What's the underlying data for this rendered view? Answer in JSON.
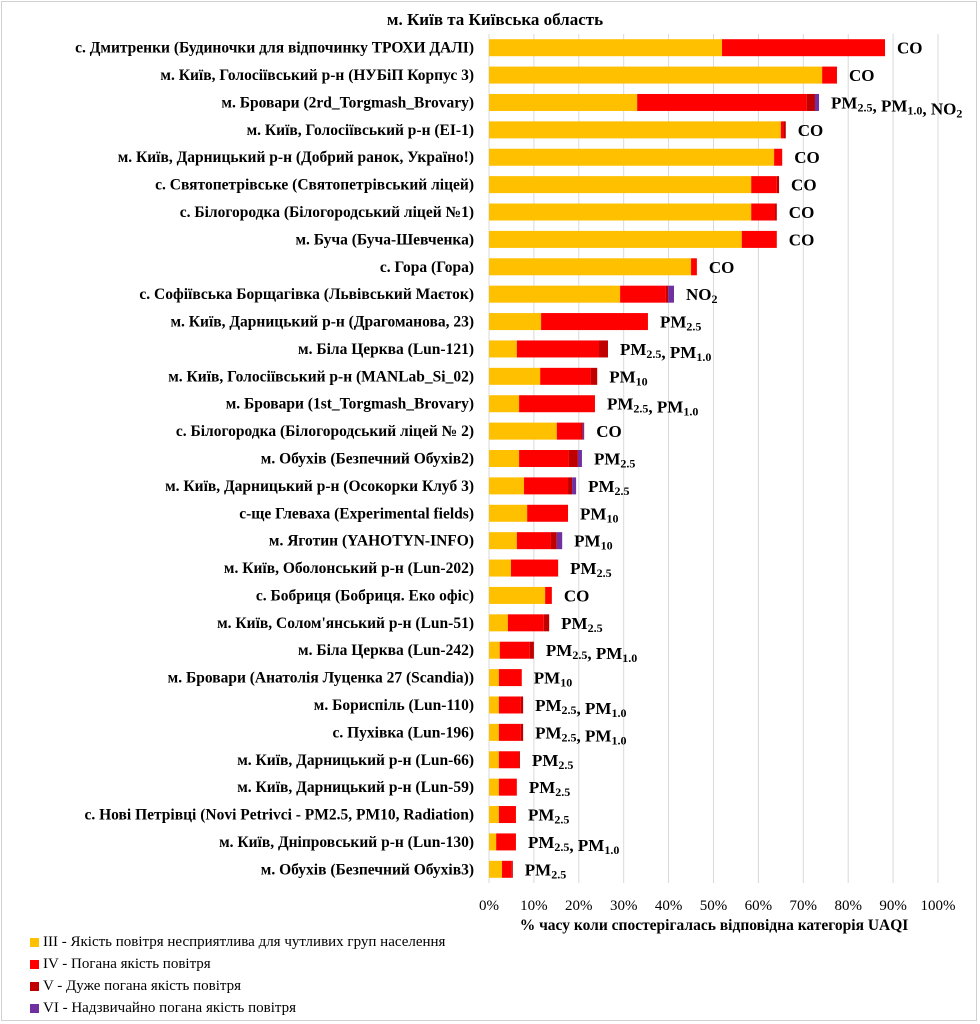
{
  "chart_data": {
    "type": "bar",
    "orientation": "horizontal",
    "stacked": true,
    "title": "м. Київ та Київська область",
    "xlabel": "% часу коли спостерігалась відповідна категорія UAQI",
    "ylabel": "",
    "xlim": [
      0,
      100
    ],
    "x_ticks": [
      "0%",
      "10%",
      "20%",
      "30%",
      "40%",
      "50%",
      "60%",
      "70%",
      "80%",
      "90%",
      "100%"
    ],
    "grid": "vertical",
    "legend_position": "bottom-left",
    "categories": [
      "с. Дмитренки (Будиночки для відпочинку ТРОХИ ДАЛІ)",
      "м. Київ, Голосіївський р-н (НУБіП Корпус 3)",
      "м. Бровари (2rd_Torgmash_Brovary)",
      "м. Київ, Голосіївський р-н (EI-1)",
      "м. Київ, Дарницький р-н (Добрий ранок, Україно!)",
      "с. Святопетрівське (Святопетрівський ліцей)",
      "с. Білогородка (Білогородський ліцей №1)",
      "м. Буча (Буча-Шевченка)",
      "с. Гора (Гора)",
      "с. Софіївська Борщагівка (Львівський Маєток)",
      "м. Київ, Дарницький р-н (Драгоманова, 23)",
      "м. Біла Церква (Lun-121)",
      "м. Київ, Голосіївський р-н (MANLab_Si_02)",
      "м. Бровари (1st_Torgmash_Brovary)",
      "с. Білогородка (Білогородський ліцей № 2)",
      "м. Обухів (Безпечний Обухів2)",
      "м. Київ, Дарницький р-н (Осокорки Клуб 3)",
      "с-ще Глеваха (Experimental fields)",
      "м. Яготин (YAHOTYN-INFO)",
      "м. Київ, Оболонський р-н (Lun-202)",
      "с. Бобриця (Бобриця. Еко офіс)",
      "м. Київ, Солом'янський р-н (Lun-51)",
      "м. Біла Церква (Lun-242)",
      "м. Бровари (Анатолія Луценка 27 (Scandia))",
      "м. Бориспіль (Lun-110)",
      "с. Пухівка (Lun-196)",
      "м. Київ, Дарницький р-н (Lun-66)",
      "м. Київ, Дарницький р-н (Lun-59)",
      "с. Нові Петрівці (Novi Petrivci - PM2.5, PM10, Radiation)",
      "м. Київ, Дніпровський р-н (Lun-130)",
      "м. Обухів (Безпечний Обухів3)"
    ],
    "series": [
      {
        "name": "III - Якість повітря несприятлива для чутливих груп населення",
        "color": "#FFC000",
        "values": [
          51.9,
          74.2,
          33.0,
          65.0,
          63.5,
          58.4,
          58.4,
          56.3,
          45.0,
          29.2,
          11.6,
          6.2,
          11.4,
          6.7,
          15.1,
          6.7,
          7.8,
          8.5,
          6.2,
          4.9,
          12.5,
          4.2,
          2.4,
          2.2,
          2.2,
          2.2,
          2.2,
          2.2,
          2.2,
          1.6,
          2.9
        ]
      },
      {
        "name": "IV - Погана якість повітря",
        "color": "#FF0000",
        "values": [
          36.3,
          3.3,
          37.8,
          0.6,
          1.8,
          5.7,
          5.3,
          7.8,
          1.3,
          10.2,
          23.8,
          18.3,
          11.3,
          16.9,
          5.4,
          11.1,
          9.8,
          9.1,
          7.6,
          10.5,
          1.5,
          8.0,
          6.7,
          5.1,
          4.9,
          4.9,
          4.5,
          4.0,
          3.8,
          4.4,
          2.2
        ]
      },
      {
        "name": "V - Дуже погана якість повітря",
        "color": "#C00000",
        "values": [
          0,
          0,
          1.8,
          0.5,
          0,
          0.5,
          0.4,
          0,
          0,
          0.5,
          0,
          2.0,
          1.4,
          0,
          0.4,
          2.0,
          0.9,
          0,
          1.3,
          0,
          0,
          1.2,
          0.9,
          0,
          0.5,
          0.5,
          0.2,
          0,
          0,
          0,
          0.2
        ]
      },
      {
        "name": "VI - Надзвичайно погана якість повітря",
        "color": "#7030A0",
        "values": [
          0,
          0,
          0.9,
          0,
          0,
          0,
          0,
          0,
          0,
          1.3,
          0,
          0,
          0,
          0,
          0.3,
          0.9,
          0.9,
          0,
          1.2,
          0,
          0,
          0,
          0,
          0,
          0,
          0,
          0,
          0,
          0,
          0,
          0
        ]
      }
    ],
    "annotations": [
      [
        [
          "CO",
          ""
        ]
      ],
      [
        [
          "CO",
          ""
        ]
      ],
      [
        [
          "PM",
          "2.5"
        ],
        [
          ", PM",
          "1.0"
        ],
        [
          ", NO",
          "2"
        ]
      ],
      [
        [
          "CO",
          ""
        ]
      ],
      [
        [
          "CO",
          ""
        ]
      ],
      [
        [
          "CO",
          ""
        ]
      ],
      [
        [
          "CO",
          ""
        ]
      ],
      [
        [
          "CO",
          ""
        ]
      ],
      [
        [
          "CO",
          ""
        ]
      ],
      [
        [
          "NO",
          "2"
        ]
      ],
      [
        [
          "PM",
          "2.5"
        ]
      ],
      [
        [
          "PM",
          "2.5"
        ],
        [
          ", PM",
          "1.0"
        ]
      ],
      [
        [
          "PM",
          "10"
        ]
      ],
      [
        [
          "PM",
          "2.5"
        ],
        [
          ", PM",
          "1.0"
        ]
      ],
      [
        [
          "CO",
          ""
        ]
      ],
      [
        [
          "PM",
          "2.5"
        ]
      ],
      [
        [
          "PM",
          "2.5"
        ]
      ],
      [
        [
          "PM",
          "10"
        ]
      ],
      [
        [
          "PM",
          "10"
        ]
      ],
      [
        [
          "PM",
          "2.5"
        ]
      ],
      [
        [
          "CO",
          ""
        ]
      ],
      [
        [
          "PM",
          "2.5"
        ]
      ],
      [
        [
          "PM",
          "2.5"
        ],
        [
          ", PM",
          "1.0"
        ]
      ],
      [
        [
          "PM",
          "10"
        ]
      ],
      [
        [
          "PM",
          "2.5"
        ],
        [
          ", PM",
          "1.0"
        ]
      ],
      [
        [
          "PM",
          "2.5"
        ],
        [
          ", PM",
          "1.0"
        ]
      ],
      [
        [
          "PM",
          "2.5"
        ]
      ],
      [
        [
          "PM",
          "2.5"
        ]
      ],
      [
        [
          "PM",
          "2.5"
        ]
      ],
      [
        [
          "PM",
          "2.5"
        ],
        [
          ", PM",
          "1.0"
        ]
      ],
      [
        [
          "PM",
          "2.5"
        ]
      ]
    ]
  }
}
